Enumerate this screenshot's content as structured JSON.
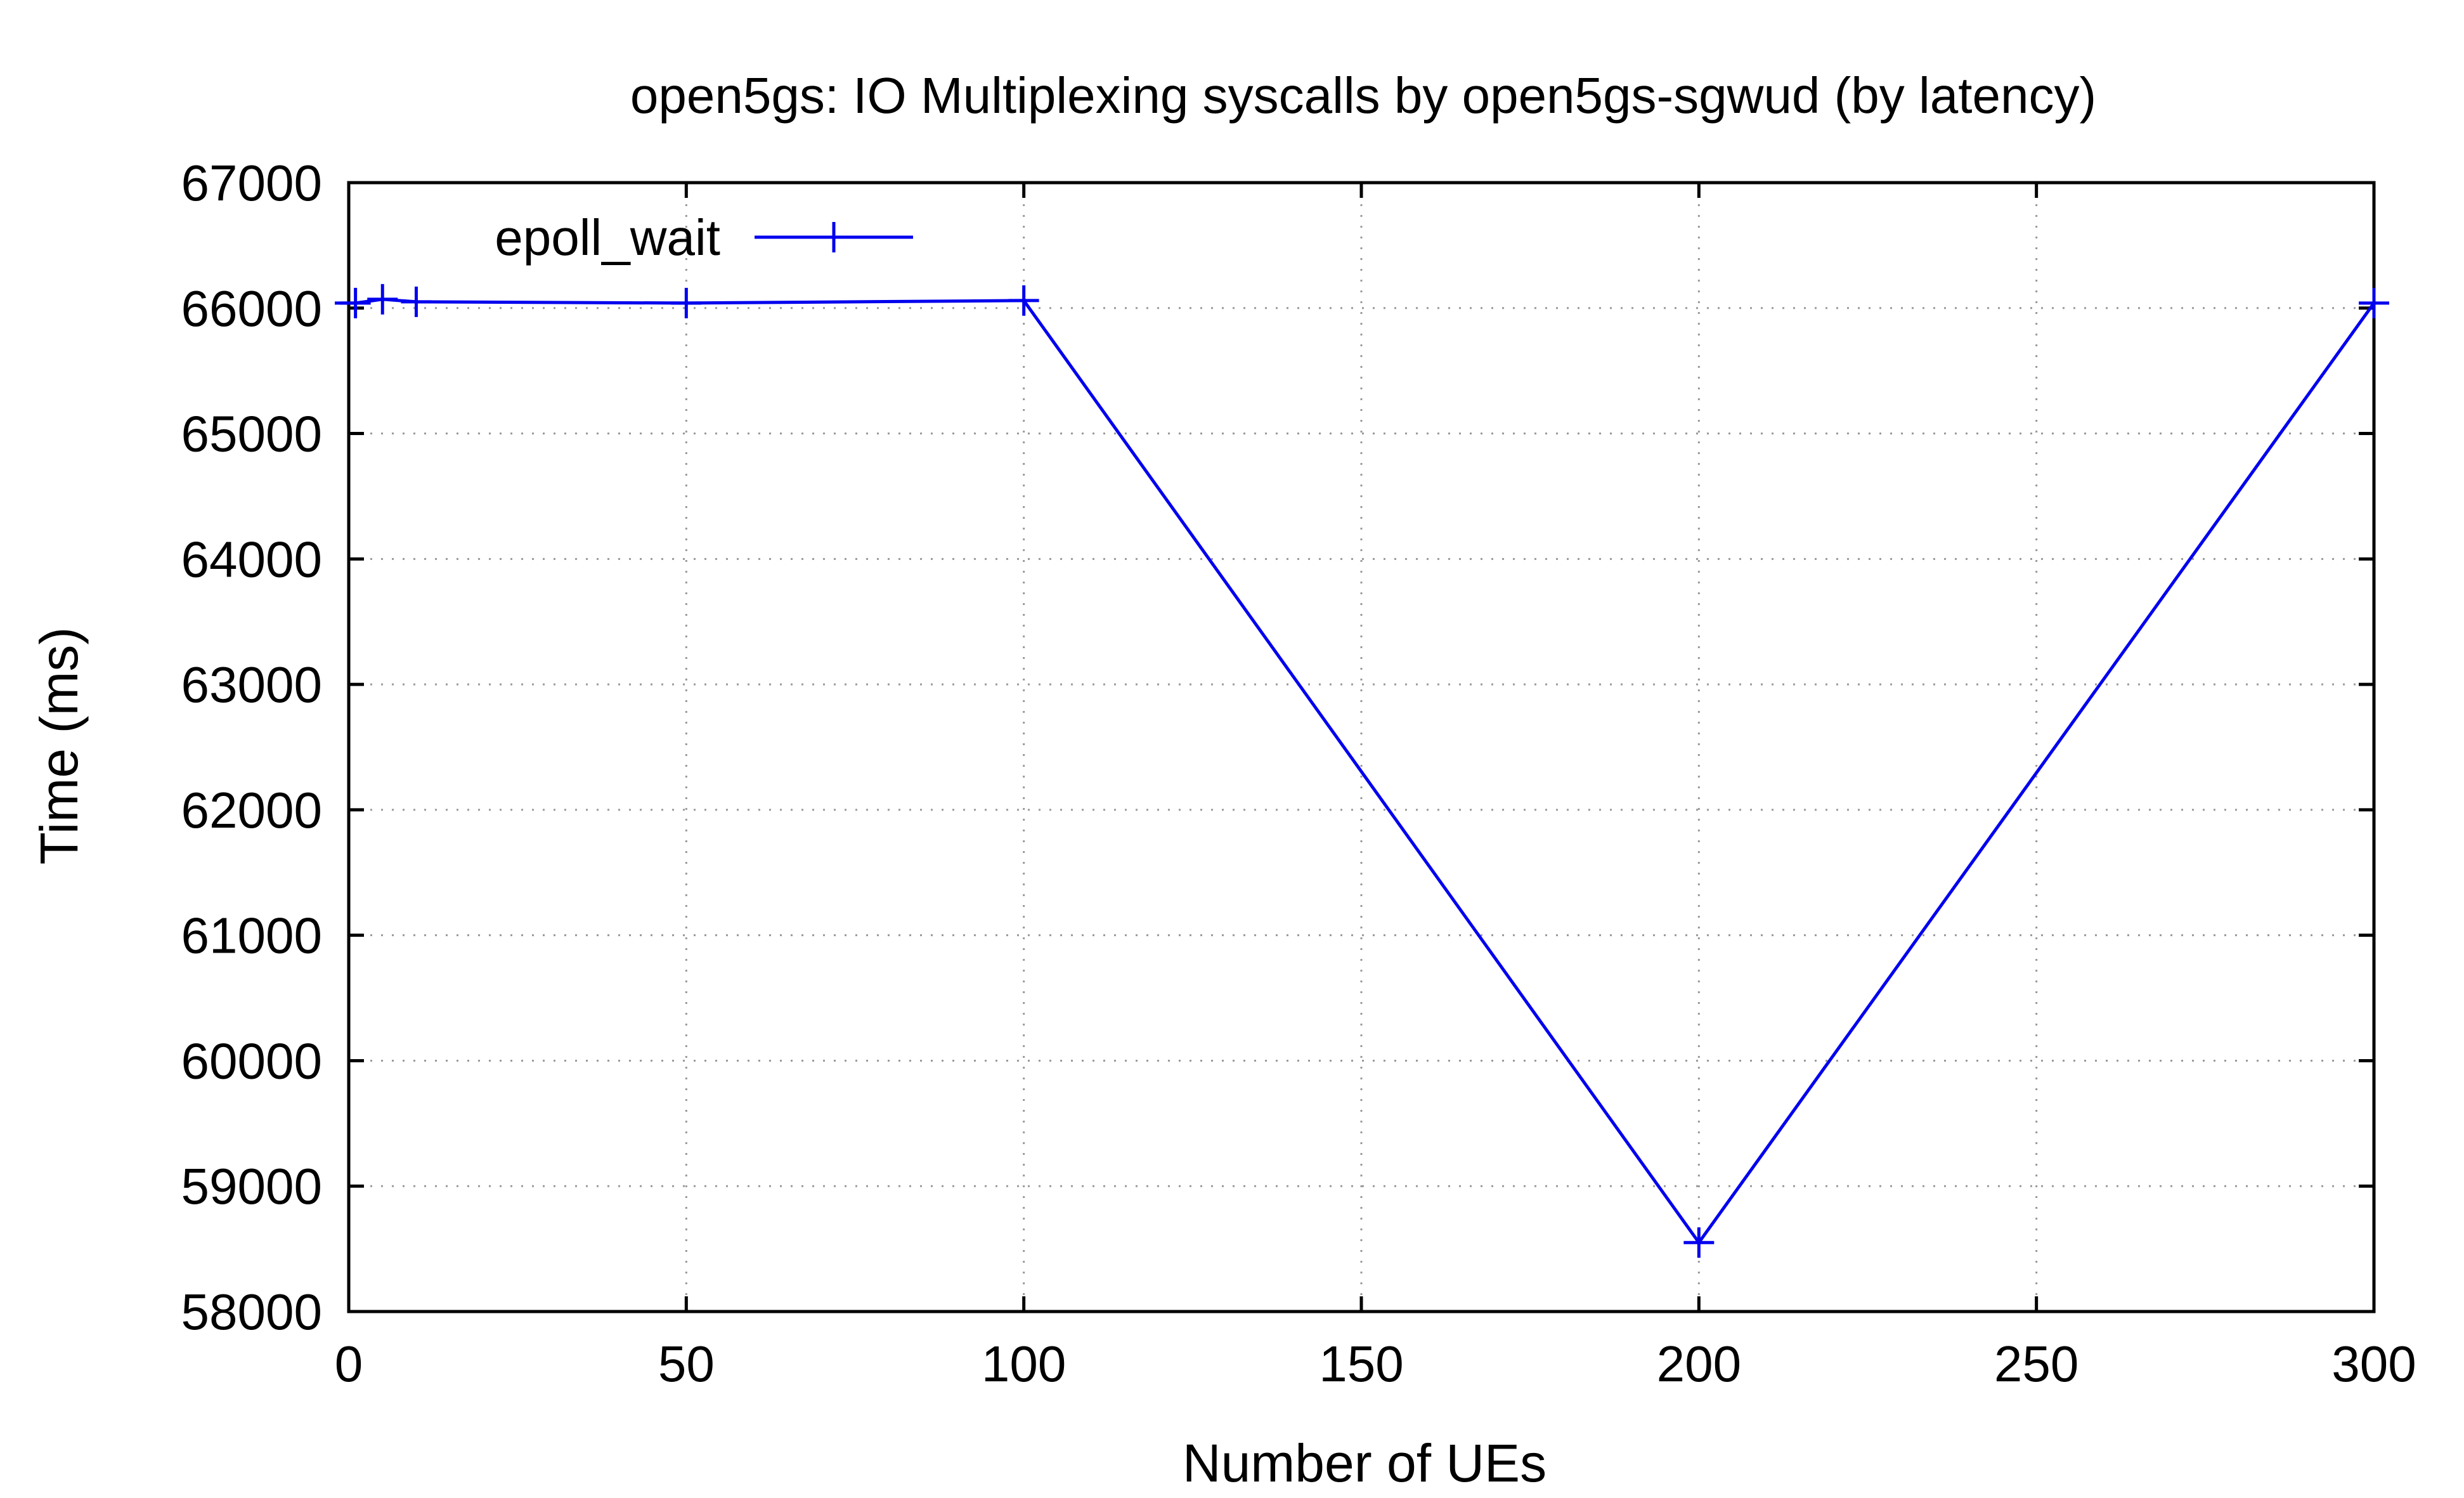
{
  "chart_data": {
    "type": "line",
    "title": "open5gs: IO Multiplexing syscalls by open5gs-sgwud (by latency)",
    "xlabel": "Number of UEs",
    "ylabel": "Time (ms)",
    "xlim": [
      0,
      300
    ],
    "ylim": [
      58000,
      67000
    ],
    "xticks": [
      0,
      50,
      100,
      150,
      200,
      250,
      300
    ],
    "yticks": [
      58000,
      59000,
      60000,
      61000,
      62000,
      63000,
      64000,
      65000,
      66000,
      67000
    ],
    "grid": true,
    "legend_position": "top-left",
    "series": [
      {
        "name": "epoll_wait",
        "color": "#0000ee",
        "marker": "plus",
        "points": [
          {
            "x": 1,
            "y": 66040
          },
          {
            "x": 5,
            "y": 66070
          },
          {
            "x": 10,
            "y": 66050
          },
          {
            "x": 50,
            "y": 66040
          },
          {
            "x": 100,
            "y": 66060
          },
          {
            "x": 200,
            "y": 58550
          },
          {
            "x": 300,
            "y": 66040
          }
        ]
      }
    ]
  }
}
